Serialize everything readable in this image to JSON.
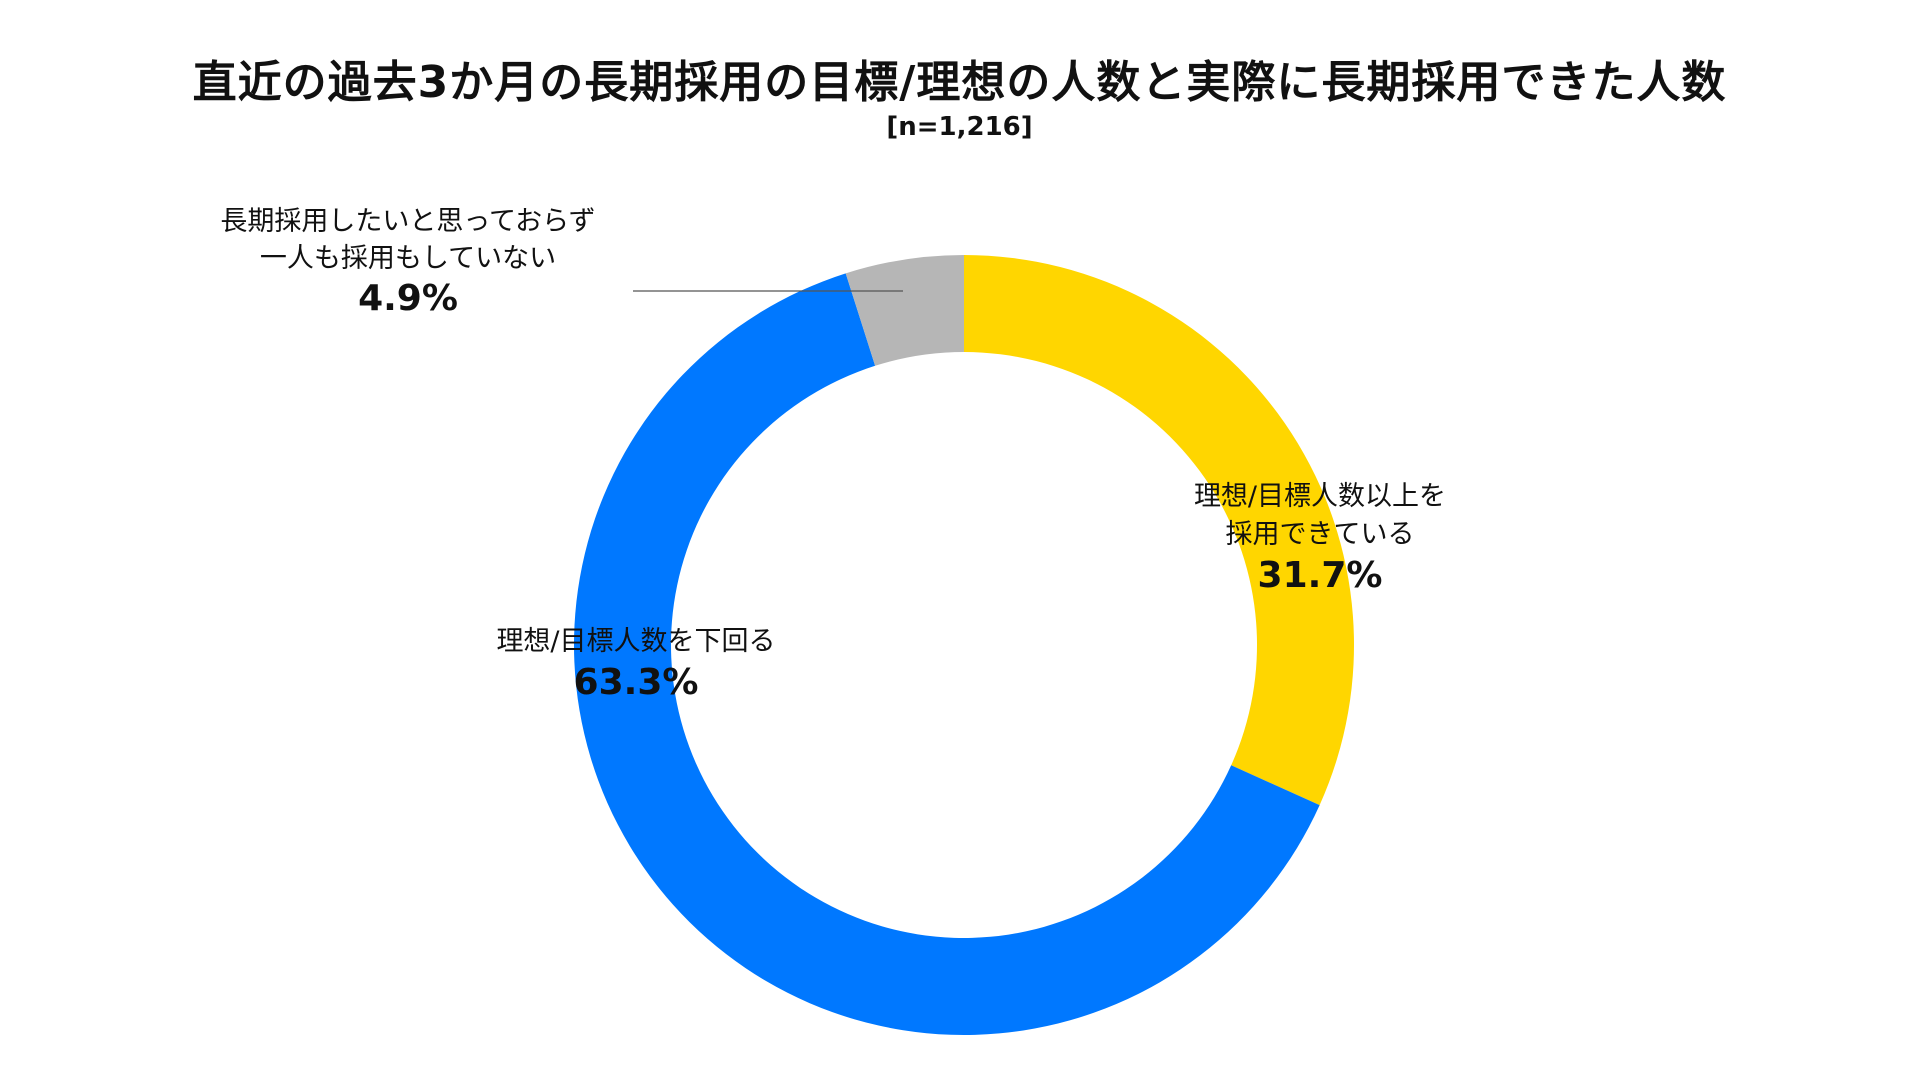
{
  "chart_data": {
    "type": "pie",
    "title": "直近の過去3か月の長期採用の目標/理想の人数と実際に長期採用できた人数",
    "subtitle": "[n=1,216]",
    "slices": [
      {
        "label_lines": [
          "理想/目標人数以上を",
          "採用できている"
        ],
        "value_text": "31.7%",
        "value": 31.7,
        "color": "#FFD600"
      },
      {
        "label_lines": [
          "理想/目標人数を下回る"
        ],
        "value_text": "63.3%",
        "value": 63.3,
        "color": "#0078FF"
      },
      {
        "label_lines": [
          "長期採用したいと思っておらず",
          "一人も採用もしていない"
        ],
        "value_text": "4.9%",
        "value": 4.9,
        "color": "#B6B6B6"
      }
    ]
  }
}
